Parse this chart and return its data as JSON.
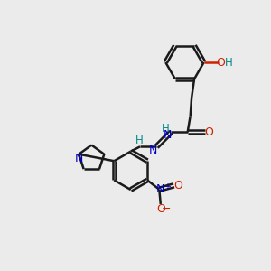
{
  "background_color": "#ebebeb",
  "bond_color": "#1a1a1a",
  "atom_colors": {
    "N": "#0000cc",
    "O": "#cc2200",
    "H": "#008888",
    "C": "#1a1a1a"
  },
  "figsize": [
    3.0,
    3.0
  ],
  "dpi": 100
}
